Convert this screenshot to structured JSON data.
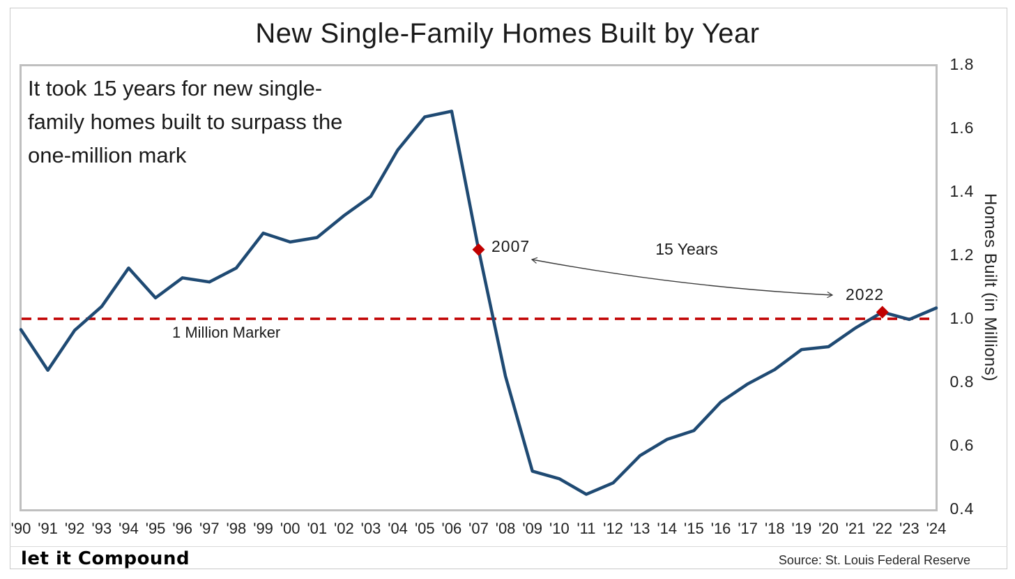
{
  "page": {
    "title": "New Single-Family Homes Built by Year"
  },
  "annotation": {
    "lines": [
      "It took 15 years for new single-",
      "family homes built to surpass the",
      "one-million mark"
    ]
  },
  "labels": {
    "million_marker": "1 Million Marker",
    "span_label": "15 Years",
    "marker_left": "2007",
    "marker_right": "2022"
  },
  "y_axis": {
    "title": "Homes Built (in Millions)",
    "ticks": [
      "1.8",
      "1.6",
      "1.4",
      "1.2",
      "1.0",
      "0.8",
      "0.6",
      "0.4"
    ],
    "tick_values": [
      1.8,
      1.6,
      1.4,
      1.2,
      1.0,
      0.8,
      0.6,
      0.4
    ]
  },
  "footer": {
    "logo_text": "let it Compound",
    "source_text": "Source: St. Louis Federal Reserve"
  },
  "colors": {
    "line": "#1f4a73",
    "reference": "#c00000",
    "marker": "#c00000",
    "arrow": "#3a3a3a",
    "plot_border": "#bfbfbf"
  },
  "chart_data": {
    "type": "line",
    "title": "New Single-Family Homes Built by Year",
    "xlabel": "",
    "ylabel": "Homes Built (in Millions)",
    "ylim": [
      0.4,
      1.8
    ],
    "grid": false,
    "legend": "none",
    "x": [
      1990,
      1991,
      1992,
      1993,
      1994,
      1995,
      1996,
      1997,
      1998,
      1999,
      2000,
      2001,
      2002,
      2003,
      2004,
      2005,
      2006,
      2007,
      2008,
      2009,
      2010,
      2011,
      2012,
      2013,
      2014,
      2015,
      2016,
      2017,
      2018,
      2019,
      2020,
      2021,
      2022,
      2023,
      2024
    ],
    "categories": [
      "'90",
      "'91",
      "'92",
      "'93",
      "'94",
      "'95",
      "'96",
      "'97",
      "'98",
      "'99",
      "'00",
      "'01",
      "'02",
      "'03",
      "'04",
      "'05",
      "'06",
      "'07",
      "'08",
      "'09",
      "'10",
      "'11",
      "'12",
      "'13",
      "'14",
      "'15",
      "'16",
      "'17",
      "'18",
      "'19",
      "'20",
      "'21",
      "'22",
      "'23",
      "'24"
    ],
    "values": [
      0.966,
      0.838,
      0.964,
      1.039,
      1.16,
      1.066,
      1.129,
      1.116,
      1.16,
      1.27,
      1.242,
      1.256,
      1.325,
      1.386,
      1.532,
      1.636,
      1.654,
      1.218,
      0.819,
      0.52,
      0.496,
      0.447,
      0.483,
      0.569,
      0.62,
      0.648,
      0.738,
      0.795,
      0.84,
      0.903,
      0.912,
      0.971,
      1.021,
      0.998,
      1.034
    ],
    "reference_line": {
      "value": 1.0,
      "label": "1 Million Marker"
    },
    "highlight_points": [
      {
        "year": 2007,
        "value": 1.218,
        "label": "2007"
      },
      {
        "year": 2022,
        "value": 1.021,
        "label": "2022"
      }
    ],
    "span_annotation": {
      "label": "15 Years",
      "from_year": 2007,
      "to_year": 2022
    }
  }
}
